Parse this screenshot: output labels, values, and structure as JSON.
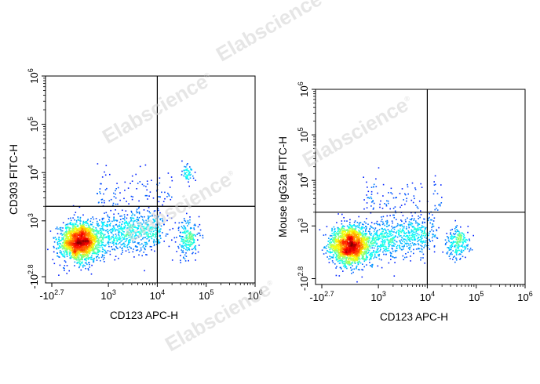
{
  "watermark": {
    "text": "Elabscience",
    "reg": "®"
  },
  "chart_data": [
    {
      "type": "scatter",
      "subtype": "flow-cytometry-density-dot-plot",
      "xlabel": "CD123 APC-H",
      "ylabel": "CD303 FITC-H",
      "xscale": "biexponential",
      "yscale": "biexponential",
      "xticks": [
        {
          "base": "-10",
          "exp": "2.7",
          "value": -501
        },
        {
          "base": "10",
          "exp": "3",
          "value": 1000
        },
        {
          "base": "10",
          "exp": "4",
          "value": 10000
        },
        {
          "base": "10",
          "exp": "5",
          "value": 100000
        },
        {
          "base": "10",
          "exp": "6",
          "value": 1000000
        }
      ],
      "yticks": [
        {
          "base": "-10",
          "exp": "2.8",
          "value": -631
        },
        {
          "base": "10",
          "exp": "3",
          "value": 1000
        },
        {
          "base": "10",
          "exp": "4",
          "value": 10000
        },
        {
          "base": "10",
          "exp": "5",
          "value": 100000
        },
        {
          "base": "10",
          "exp": "6",
          "value": 1000000
        }
      ],
      "quadrant_gate": {
        "x": 10000,
        "y": 2000
      },
      "populations": [
        {
          "name": "main",
          "center_x": 200,
          "center_y": 400,
          "density": "high"
        },
        {
          "name": "tail",
          "center_x": 1500,
          "center_y": 1000,
          "density": "medium"
        },
        {
          "name": "cd123-high",
          "center_x": 40000,
          "center_y": 500,
          "density": "low"
        },
        {
          "name": "double-positive",
          "center_x": 40000,
          "center_y": 10000,
          "density": "low"
        }
      ]
    },
    {
      "type": "scatter",
      "subtype": "flow-cytometry-density-dot-plot",
      "xlabel": "CD123 APC-H",
      "ylabel": "Mouse IgG2a FITC-H",
      "xscale": "biexponential",
      "yscale": "biexponential",
      "xticks": [
        {
          "base": "-10",
          "exp": "2.7",
          "value": -501
        },
        {
          "base": "10",
          "exp": "3",
          "value": 1000
        },
        {
          "base": "10",
          "exp": "4",
          "value": 10000
        },
        {
          "base": "10",
          "exp": "5",
          "value": 100000
        },
        {
          "base": "10",
          "exp": "6",
          "value": 1000000
        }
      ],
      "yticks": [
        {
          "base": "-10",
          "exp": "2.8",
          "value": -631
        },
        {
          "base": "10",
          "exp": "3",
          "value": 1000
        },
        {
          "base": "10",
          "exp": "4",
          "value": 10000
        },
        {
          "base": "10",
          "exp": "5",
          "value": 100000
        },
        {
          "base": "10",
          "exp": "6",
          "value": 1000000
        }
      ],
      "quadrant_gate": {
        "x": 10000,
        "y": 2000
      },
      "populations": [
        {
          "name": "main",
          "center_x": 200,
          "center_y": 400,
          "density": "high"
        },
        {
          "name": "tail",
          "center_x": 1500,
          "center_y": 1000,
          "density": "medium"
        },
        {
          "name": "cd123-high",
          "center_x": 40000,
          "center_y": 500,
          "density": "low"
        }
      ]
    }
  ]
}
